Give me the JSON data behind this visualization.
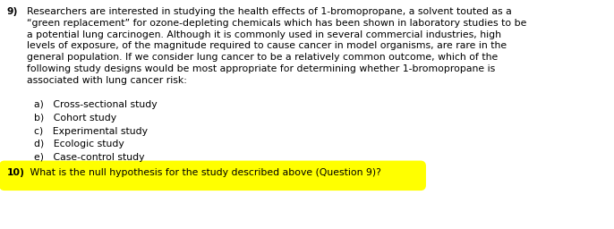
{
  "background_color": "#ffffff",
  "question_number": "9)",
  "question_text": "Researchers are interested in studying the health effects of 1-bromopropane, a solvent touted as a\n“green replacement” for ozone-depleting chemicals which has been shown in laboratory studies to be\na potential lung carcinogen. Although it is commonly used in several commercial industries, high\nlevels of exposure, of the magnitude required to cause cancer in model organisms, are rare in the\ngeneral population. If we consider lung cancer to be a relatively common outcome, which of the\nfollowing study designs would be most appropriate for determining whether 1-bromopropane is\nassociated with lung cancer risk:",
  "options": [
    "a)   Cross-sectional study",
    "b)   Cohort study",
    "c)   Experimental study",
    "d)   Ecologic study",
    "e)   Case-control study"
  ],
  "question10_bold": "10)",
  "question10_text": " What is the null hypothesis for the study described above (Question 9)?",
  "highlight_color": "#ffff00",
  "highlight_edge_color": "#e8e800",
  "text_color": "#000000",
  "font_size": 7.8,
  "fig_width": 6.86,
  "fig_height": 2.56,
  "dpi": 100
}
